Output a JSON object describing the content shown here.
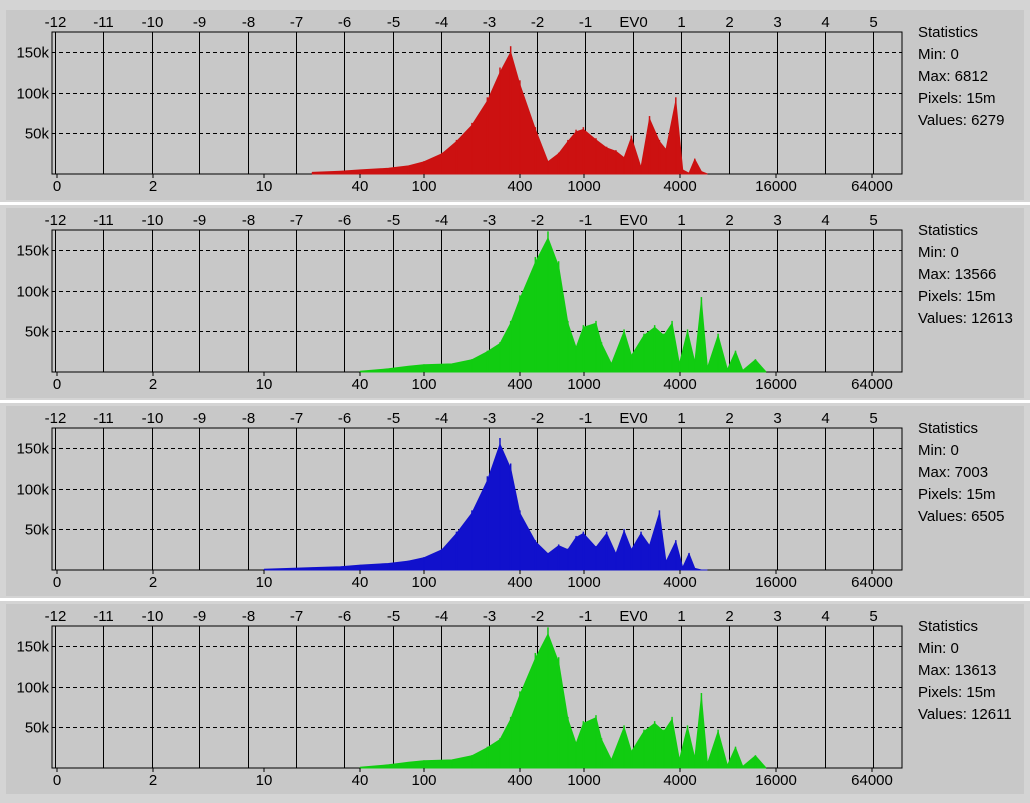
{
  "ev_ticks": [
    "-12",
    "-11",
    "-10",
    "-9",
    "-8",
    "-7",
    "-6",
    "-5",
    "-4",
    "-3",
    "-2",
    "-1",
    "EV0",
    "1",
    "2",
    "3",
    "4",
    "5"
  ],
  "y_ticks": [
    "150k",
    "100k",
    "50k"
  ],
  "x_ticks": [
    "0",
    "2",
    "10",
    "40",
    "100",
    "400",
    "1000",
    "4000",
    "16000",
    "64000"
  ],
  "stats_labels": {
    "title": "Statistics",
    "min": "Min:",
    "max": "Max:",
    "pixels": "Pixels:",
    "values": "Values:"
  },
  "chart_data": [
    {
      "type": "area",
      "color": "#cc1111",
      "ylim": [
        0,
        175000
      ],
      "stats": {
        "min": "0",
        "max": "6812",
        "pixels": "15m",
        "values": "6279"
      },
      "x": [
        20,
        30,
        40,
        60,
        80,
        100,
        130,
        160,
        200,
        250,
        300,
        350,
        400,
        500,
        600,
        700,
        800,
        900,
        1000,
        1200,
        1400,
        1600,
        1800,
        2000,
        2300,
        2600,
        3000,
        3300,
        3800,
        4200,
        4600,
        5000,
        5500,
        6000
      ],
      "values": [
        2000,
        3500,
        5000,
        7000,
        10000,
        15000,
        25000,
        40000,
        60000,
        90000,
        125000,
        150000,
        110000,
        55000,
        15000,
        25000,
        40000,
        52000,
        55000,
        42000,
        32000,
        28000,
        20000,
        45000,
        8000,
        68000,
        40000,
        30000,
        90000,
        5000,
        1000,
        18000,
        3000,
        0
      ]
    },
    {
      "type": "area",
      "color": "#11cc11",
      "ylim": [
        0,
        175000
      ],
      "stats": {
        "min": "0",
        "max": "13566",
        "pixels": "15m",
        "values": "12613"
      },
      "x": [
        40,
        60,
        80,
        100,
        150,
        200,
        250,
        300,
        350,
        400,
        500,
        600,
        700,
        800,
        900,
        1000,
        1200,
        1300,
        1500,
        1800,
        2000,
        2400,
        2800,
        3200,
        3600,
        4000,
        4500,
        5000,
        5500,
        6000,
        7000,
        8000,
        9000,
        10000,
        12000,
        14000
      ],
      "values": [
        1000,
        4000,
        7000,
        9000,
        10000,
        15000,
        25000,
        35000,
        60000,
        90000,
        135000,
        165000,
        130000,
        60000,
        30000,
        55000,
        60000,
        35000,
        10000,
        50000,
        20000,
        45000,
        55000,
        45000,
        60000,
        10000,
        50000,
        12000,
        88000,
        5000,
        45000,
        3000,
        25000,
        2000,
        15000,
        0
      ]
    },
    {
      "type": "area",
      "color": "#1111cc",
      "ylim": [
        0,
        175000
      ],
      "stats": {
        "min": "0",
        "max": "7003",
        "pixels": "15m",
        "values": "6505"
      },
      "x": [
        10,
        20,
        30,
        40,
        60,
        80,
        100,
        130,
        160,
        200,
        250,
        300,
        350,
        400,
        500,
        600,
        700,
        800,
        900,
        1000,
        1200,
        1400,
        1600,
        1800,
        2000,
        2300,
        2600,
        3000,
        3300,
        3800,
        4200,
        4600,
        5000,
        5500,
        6000
      ],
      "values": [
        1000,
        3000,
        4000,
        6000,
        8000,
        11000,
        15000,
        25000,
        45000,
        70000,
        110000,
        155000,
        125000,
        70000,
        35000,
        20000,
        30000,
        25000,
        40000,
        45000,
        28000,
        45000,
        20000,
        48000,
        25000,
        45000,
        30000,
        70000,
        10000,
        35000,
        3000,
        20000,
        2000,
        0,
        0
      ]
    },
    {
      "type": "area",
      "color": "#11cc11",
      "ylim": [
        0,
        175000
      ],
      "stats": {
        "min": "0",
        "max": "13613",
        "pixels": "15m",
        "values": "12611"
      },
      "x": [
        40,
        60,
        80,
        100,
        150,
        200,
        250,
        300,
        350,
        400,
        500,
        600,
        700,
        800,
        900,
        1000,
        1200,
        1300,
        1500,
        1800,
        2000,
        2400,
        2800,
        3200,
        3600,
        4000,
        4500,
        5000,
        5500,
        6000,
        7000,
        8000,
        9000,
        10000,
        12000,
        14000
      ],
      "values": [
        1000,
        4000,
        7000,
        9000,
        10000,
        15000,
        25000,
        35000,
        60000,
        90000,
        135000,
        165000,
        130000,
        60000,
        30000,
        55000,
        62000,
        35000,
        10000,
        50000,
        20000,
        45000,
        55000,
        45000,
        60000,
        10000,
        50000,
        12000,
        88000,
        5000,
        45000,
        3000,
        25000,
        2000,
        15000,
        0
      ]
    }
  ]
}
